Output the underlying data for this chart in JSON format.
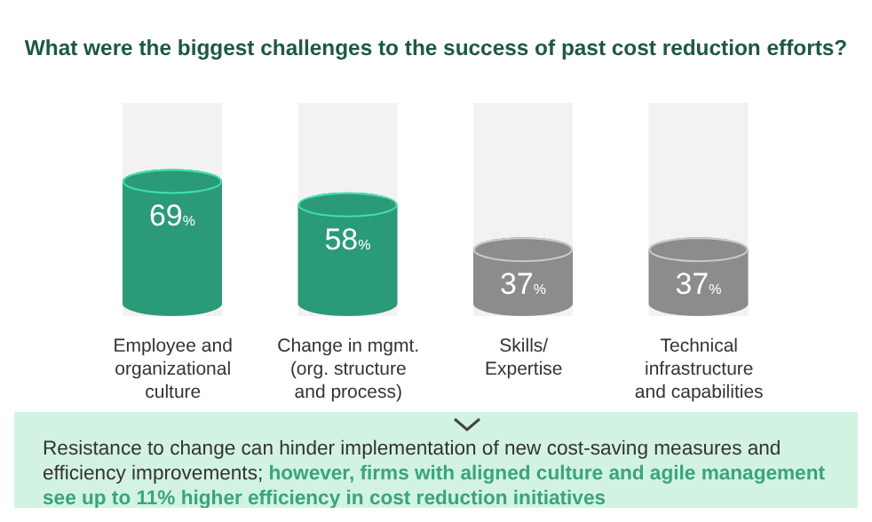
{
  "chart_data": {
    "type": "bar",
    "title": "What were the biggest challenges to the success of past cost reduction efforts?",
    "categories": [
      "Employee and organizational culture",
      "Change in mgmt. (org. structure and process)",
      "Skills/ Expertise",
      "Technical infrastructure and capabilities"
    ],
    "values": [
      69,
      58,
      37,
      37
    ],
    "colors": [
      "#2b9a78",
      "#2b9a78",
      "#8c8c8c",
      "#8c8c8c"
    ],
    "value_labels": [
      "69%",
      "58%",
      "37%",
      "37%"
    ],
    "ylim": [
      0,
      100
    ],
    "tick_labels": "x",
    "grid": false,
    "legend": false,
    "annotations": [
      "Resistance to change can hinder implementation of new cost-saving measures and efficiency improvements;",
      "however, firms with aligned culture and agile management see up to 11% higher efficiency in cost reduction initiatives"
    ]
  }
}
